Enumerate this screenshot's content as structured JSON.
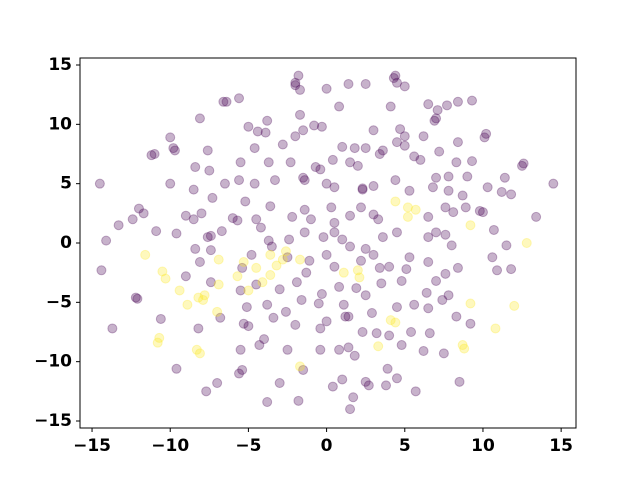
{
  "chart_data": {
    "type": "scatter",
    "xlim": [
      -15.77,
      15.95
    ],
    "ylim": [
      -15.59,
      15.59
    ],
    "xticks": [
      {
        "value": -15,
        "label": "−15"
      },
      {
        "value": -10,
        "label": "−10"
      },
      {
        "value": -5,
        "label": "−5"
      },
      0,
      5,
      10,
      15
    ],
    "yticks": [
      {
        "value": -15,
        "label": "−15"
      },
      {
        "value": -10,
        "label": "−10"
      },
      {
        "value": -5,
        "label": "−5"
      },
      0,
      5,
      10,
      15
    ],
    "alpha": 0.3,
    "series": [
      {
        "color": "#440154",
        "x": [
          -1.8,
          -2.0,
          -2.0,
          -1.7,
          0.0,
          1.4,
          2.5,
          4.3,
          4.4,
          4.5,
          5.0,
          -5.6,
          -6.4,
          -6.6,
          -8.1,
          -3.8,
          -1.7,
          0.8,
          4.1,
          6.5,
          7.1,
          7.7,
          8.4,
          9.3,
          7.0,
          6.9,
          -5.0,
          -4.4,
          -3.9,
          -2.0,
          -1.5,
          -0.3,
          -0.8,
          3.0,
          4.7,
          5.0,
          6.2,
          8.4,
          10.1,
          10.2,
          -10.0,
          -9.8,
          -9.7,
          -11.2,
          -11.0,
          -7.6,
          -4.6,
          -2.8,
          1.0,
          1.8,
          2.5,
          3.6,
          4.5,
          5.0,
          5.6,
          6.0,
          7.2,
          8.3,
          9.3,
          -8.4,
          -7.5,
          -5.5,
          -3.7,
          -2.3,
          -0.7,
          -0.4,
          0.4,
          1.5,
          2.0,
          3.4,
          7.0,
          7.8,
          9.0,
          11.4,
          12.5,
          12.6,
          14.5,
          -14.5,
          -10.0,
          -8.5,
          -6.5,
          -5.6,
          -4.6,
          -3.3,
          -1.5,
          -1.4,
          0.0,
          0.5,
          2.3,
          2.3,
          3.0,
          4.4,
          5.3,
          6.8,
          7.8,
          8.7,
          10.3,
          11.2,
          11.8,
          -12.0,
          -12.4,
          -11.7,
          -9.0,
          -8.5,
          -8.0,
          -7.3,
          -6.0,
          -5.2,
          -4.5,
          -3.6,
          -2.2,
          -1.4,
          -1.0,
          0.3,
          0.5,
          1.5,
          2.2,
          3.0,
          3.3,
          6.5,
          7.6,
          8.1,
          8.9,
          9.8,
          10.0,
          13.4,
          -14.1,
          -13.3,
          -10.9,
          -9.6,
          -7.6,
          -7.4,
          -6.7,
          -5.7,
          -4.2,
          -3.7,
          -2.4,
          -1.4,
          -0.2,
          0.5,
          1.0,
          1.5,
          2.5,
          3.6,
          4.5,
          6.5,
          7.0,
          7.6,
          8.0,
          10.7,
          11.5,
          -14.4,
          -13.7,
          -12.2,
          -12.1,
          -8.4,
          -8.1,
          -7.4,
          -5.4,
          -4.8,
          -3.5,
          -2.5,
          -1.1,
          0.0,
          0.5,
          2.2,
          3.0,
          3.4,
          4.0,
          5.3,
          6.5,
          7.6,
          8.4,
          10.6,
          10.9,
          11.8,
          -9.0,
          -7.4,
          -5.5,
          -4.5,
          -3.0,
          -1.9,
          -1.3,
          -0.3,
          0.8,
          1.9,
          2.5,
          3.5,
          4.8,
          5.1,
          6.4,
          7.0,
          7.8,
          -5.1,
          -3.8,
          -2.6,
          -1.6,
          -0.5,
          1.1,
          1.4,
          2.9,
          4.5,
          5.6,
          6.5,
          7.4,
          8.3,
          -10.6,
          -8.2,
          -6.8,
          -5.3,
          -5.0,
          -3.4,
          -2.0,
          -0.4,
          0.0,
          1.2,
          2.3,
          4.0,
          5.4,
          6.6,
          9.2,
          -9.6,
          -7.0,
          -5.5,
          -4.3,
          -4.0,
          -2.5,
          -0.4,
          0.8,
          1.4,
          1.8,
          3.2,
          4.8,
          6.2,
          7.5,
          -7.7,
          -5.6,
          -5.4,
          -3.0,
          -1.8,
          -1.5,
          1.0,
          1.5,
          1.7,
          2.7,
          3.8,
          3.9,
          4.5,
          5.7,
          8.5,
          -3.8,
          0.4,
          2.5
        ],
        "y": [
          14.1,
          13.5,
          13.3,
          12.9,
          13.0,
          13.4,
          13.4,
          13.9,
          14.1,
          13.5,
          13.2,
          12.2,
          11.9,
          11.9,
          10.5,
          10.3,
          10.8,
          11.5,
          11.5,
          11.7,
          11.2,
          11.6,
          11.9,
          12.0,
          10.5,
          10.3,
          9.8,
          9.4,
          9.3,
          9.0,
          9.5,
          9.8,
          9.9,
          9.5,
          9.6,
          9.0,
          9.0,
          8.5,
          8.9,
          9.2,
          8.9,
          8.0,
          7.8,
          7.4,
          7.5,
          7.8,
          8.0,
          8.3,
          8.1,
          8.0,
          8.0,
          7.8,
          8.5,
          8.2,
          7.3,
          7.0,
          7.7,
          6.8,
          6.9,
          6.4,
          6.1,
          6.8,
          6.8,
          6.8,
          6.4,
          6.2,
          7.0,
          6.8,
          6.5,
          7.5,
          5.5,
          5.6,
          5.6,
          5.5,
          6.5,
          6.7,
          5.0,
          5.0,
          5.0,
          4.5,
          5.0,
          5.3,
          5.0,
          5.3,
          5.5,
          5.3,
          5.0,
          4.7,
          4.6,
          4.5,
          4.8,
          5.3,
          4.4,
          4.7,
          4.4,
          4.0,
          4.7,
          4.3,
          4.1,
          2.9,
          2.0,
          2.5,
          2.3,
          2.0,
          2.5,
          3.8,
          2.1,
          3.5,
          2.0,
          3.1,
          2.2,
          2.8,
          2.0,
          3.0,
          1.7,
          2.3,
          3.0,
          2.4,
          2.0,
          2.2,
          3.0,
          2.6,
          3.0,
          2.7,
          2.6,
          2.2,
          0.2,
          1.5,
          1.0,
          0.8,
          0.5,
          0.6,
          1.0,
          1.9,
          1.3,
          0.2,
          0.3,
          0.9,
          0.5,
          0.9,
          0.3,
          -0.3,
          -0.5,
          0.5,
          0.9,
          0.5,
          0.9,
          0.7,
          -0.2,
          1.1,
          -0.2,
          -2.3,
          -7.2,
          -4.6,
          -4.7,
          -0.5,
          -1.6,
          -0.6,
          -2.1,
          -1.0,
          -0.3,
          -1.2,
          -1.5,
          -1.0,
          -2.0,
          -1.5,
          -1.0,
          -2.1,
          -2.0,
          -1.2,
          -1.6,
          -2.6,
          -2.1,
          -1.2,
          -2.3,
          -2.2,
          -2.8,
          -3.3,
          -4.0,
          -3.5,
          -3.9,
          -3.3,
          -2.5,
          -4.3,
          -3.7,
          -3.8,
          -4.4,
          -3.4,
          -3.2,
          -2.2,
          -4.2,
          -3.2,
          -4.4,
          -5.4,
          -5.2,
          -5.8,
          -4.8,
          -5.1,
          -5.2,
          -6.2,
          -5.9,
          -5.4,
          -5.2,
          -5.5,
          -4.8,
          -6.2,
          -6.4,
          -7.2,
          -6.3,
          -6.8,
          -7.0,
          -6.3,
          -6.9,
          -7.2,
          -6.6,
          -6.2,
          -7.5,
          -7.8,
          -7.5,
          -7.6,
          -6.8,
          -10.6,
          -11.8,
          -9.0,
          -8.6,
          -8.1,
          -9.0,
          -9.0,
          -9.0,
          -8.8,
          -9.5,
          -7.6,
          -8.6,
          -9.1,
          -9.3,
          -12.5,
          -11.0,
          -10.7,
          -11.8,
          -13.3,
          -10.7,
          -11.5,
          -14.0,
          -13.0,
          -12.0,
          -12.0,
          -10.6,
          -11.4,
          -12.5,
          -11.7,
          -13.4,
          -12.1,
          -11.7
        ]
      },
      {
        "color": "#fde725",
        "x": [
          -11.6,
          -10.5,
          -10.3,
          -9.4,
          -8.9,
          -8.2,
          -7.8,
          -6.9,
          -6.9,
          -7.0,
          -7.9,
          -10.8,
          -10.7,
          -8.3,
          -8.1,
          -5.7,
          -5.3,
          -5.0,
          -4.5,
          -4.1,
          -3.6,
          -3.2,
          -2.8,
          -3.6,
          -2.6,
          -1.7,
          1.1,
          2.0,
          2.1,
          3.3,
          4.1,
          4.4,
          5.2,
          5.2,
          4.4,
          9.2,
          12.8,
          10.8,
          12.0,
          9.2,
          -1.7,
          8.7,
          8.8,
          5.7
        ],
        "y": [
          -1.0,
          -2.4,
          -3.0,
          -4.0,
          -5.2,
          -4.6,
          -4.4,
          -1.4,
          -3.5,
          -5.8,
          -4.8,
          -8.4,
          -8.0,
          -9.0,
          -9.3,
          -2.8,
          -1.6,
          -4.0,
          -2.1,
          -3.3,
          -1.0,
          -1.9,
          -1.4,
          -2.7,
          -0.7,
          -1.4,
          -2.5,
          -2.3,
          -2.9,
          -8.7,
          -6.5,
          -6.7,
          3.0,
          2.2,
          3.5,
          1.5,
          0,
          -7.2,
          -5.3,
          -5.1,
          -10.4,
          -8.6,
          -8.9,
          2.8
        ]
      }
    ]
  }
}
